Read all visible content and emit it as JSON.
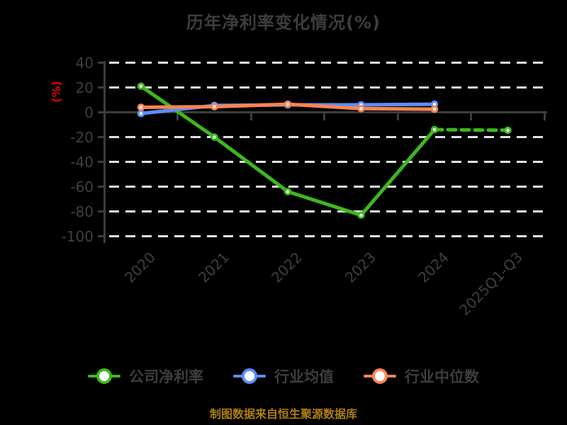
{
  "title": "历年净利率变化情况(%)",
  "footer": "制图数据来自恒生聚源数据库",
  "y_axis": {
    "label": "(%)",
    "label_color": "#e60000",
    "ticks": [
      40,
      20,
      0,
      -20,
      -40,
      -60,
      -80,
      -100
    ],
    "min": -100,
    "max": 40
  },
  "chart_data": {
    "type": "line",
    "title": "历年净利率变化情况(%)",
    "categories": [
      "2020",
      "2021",
      "2022",
      "2023",
      "2024",
      "2025Q1-Q3"
    ],
    "series": [
      {
        "id": "company-net-margin",
        "name": "公司净利率",
        "color": "#3eb71e",
        "values": [
          21,
          -20,
          -64,
          -83,
          -14,
          -14.5
        ],
        "dashed_from_index": 4
      },
      {
        "id": "industry-average",
        "name": "行业均值",
        "color": "#5b8ff9",
        "values": [
          -1,
          5.5,
          6,
          6,
          6.5,
          null
        ],
        "dashed_from_index": null
      },
      {
        "id": "industry-median",
        "name": "行业中位数",
        "color": "#fc8452",
        "values": [
          4,
          4.5,
          6.5,
          3,
          2.5,
          null
        ],
        "dashed_from_index": null
      }
    ],
    "xlabel": "",
    "ylabel": "(%)",
    "ylim": [
      -100,
      40
    ],
    "yticks": [
      40,
      20,
      0,
      -20,
      -40,
      -60,
      -80,
      -100
    ],
    "grid": "horizontal-dashed",
    "legend_position": "bottom",
    "marker": "hollow-circle",
    "background": "#000000"
  }
}
